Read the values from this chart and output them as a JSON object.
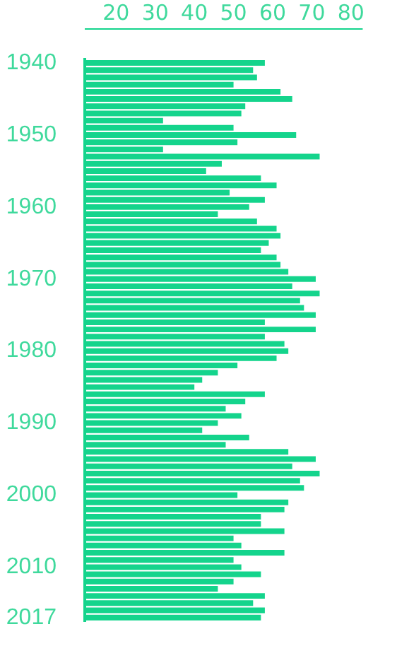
{
  "chart_data": {
    "type": "bar",
    "orientation": "horizontal",
    "categories": [
      "1940",
      null,
      null,
      null,
      null,
      null,
      null,
      null,
      null,
      null,
      "1950",
      null,
      null,
      null,
      null,
      null,
      null,
      null,
      null,
      null,
      "1960",
      null,
      null,
      null,
      null,
      null,
      null,
      null,
      null,
      null,
      "1970",
      null,
      null,
      null,
      null,
      null,
      null,
      null,
      null,
      null,
      "1980",
      null,
      null,
      null,
      null,
      null,
      null,
      null,
      null,
      null,
      "1990",
      null,
      null,
      null,
      null,
      null,
      null,
      null,
      null,
      null,
      "2000",
      null,
      null,
      null,
      null,
      null,
      null,
      null,
      null,
      null,
      "2010",
      null,
      null,
      null,
      null,
      null,
      null,
      "2017"
    ],
    "values": [
      58,
      55,
      56,
      50,
      62,
      65,
      53,
      52,
      32,
      50,
      66,
      51,
      32,
      72,
      47,
      43,
      57,
      61,
      49,
      58,
      54,
      46,
      56,
      61,
      62,
      59,
      57,
      61,
      62,
      64,
      71,
      65,
      72,
      67,
      68,
      71,
      58,
      71,
      58,
      63,
      64,
      61,
      51,
      46,
      42,
      40,
      58,
      53,
      48,
      52,
      46,
      42,
      54,
      48,
      64,
      71,
      65,
      72,
      67,
      68,
      51,
      64,
      63,
      57,
      57,
      63,
      50,
      52,
      63,
      50,
      52,
      57,
      50,
      46,
      58,
      55,
      58,
      57
    ],
    "color": "#14d48c",
    "xlim": [
      12,
      83
    ],
    "xticks": [
      20,
      30,
      40,
      50,
      60,
      70,
      80
    ],
    "grid": false,
    "legend": false
  }
}
